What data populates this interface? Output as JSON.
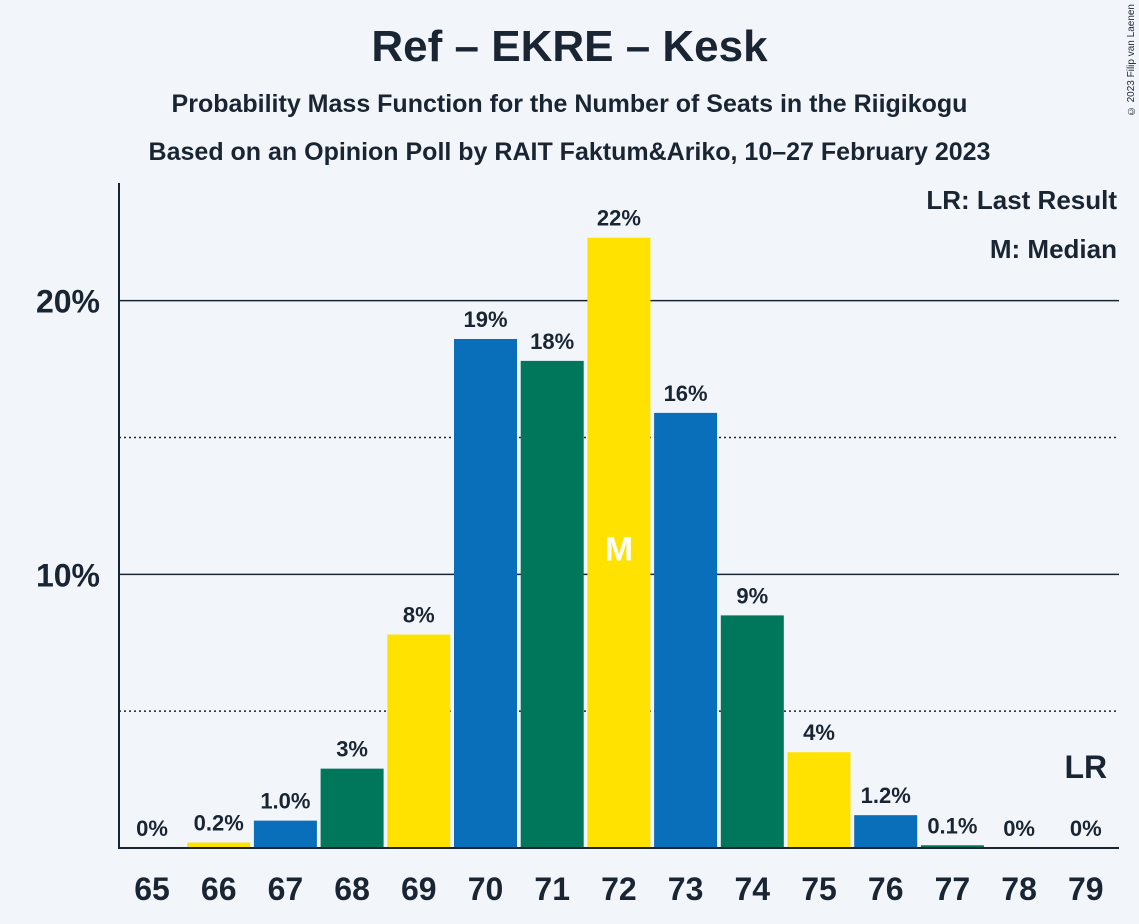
{
  "title": "Ref – EKRE – Kesk",
  "subtitle1": "Probability Mass Function for the Number of Seats in the Riigikogu",
  "subtitle2": "Based on an Opinion Poll by RAIT Faktum&Ariko, 10–27 February 2023",
  "copyright": "© 2023 Filip van Laenen",
  "legend": {
    "lr": "LR: Last Result",
    "m": "M: Median"
  },
  "colors": {
    "blue": "#0a6fba",
    "green": "#00775a",
    "yellow": "#ffe200",
    "text": "#1a2533"
  },
  "chart_data": {
    "type": "bar",
    "categories": [
      "65",
      "66",
      "67",
      "68",
      "69",
      "70",
      "71",
      "72",
      "73",
      "74",
      "75",
      "76",
      "77",
      "78",
      "79"
    ],
    "values": [
      0,
      0.2,
      1.0,
      2.9,
      7.8,
      18.6,
      17.8,
      22.3,
      15.9,
      8.5,
      3.5,
      1.2,
      0.1,
      0,
      0
    ],
    "labels": [
      "0%",
      "0.2%",
      "1.0%",
      "3%",
      "8%",
      "19%",
      "18%",
      "22%",
      "16%",
      "9%",
      "4%",
      "1.2%",
      "0.1%",
      "0%",
      "0%"
    ],
    "colors": [
      "blue",
      "yellow",
      "blue",
      "green",
      "yellow",
      "blue",
      "green",
      "yellow",
      "blue",
      "green",
      "yellow",
      "blue",
      "green",
      "yellow",
      "blue"
    ],
    "ylim": [
      0,
      24.3
    ],
    "yticks": [
      {
        "value": 10,
        "label": "10%"
      },
      {
        "value": 20,
        "label": "20%"
      }
    ],
    "minor_gridlines": [
      5,
      15
    ],
    "median_category": "72",
    "median_label": "M",
    "last_result_category": "79",
    "last_result_label": "LR"
  }
}
